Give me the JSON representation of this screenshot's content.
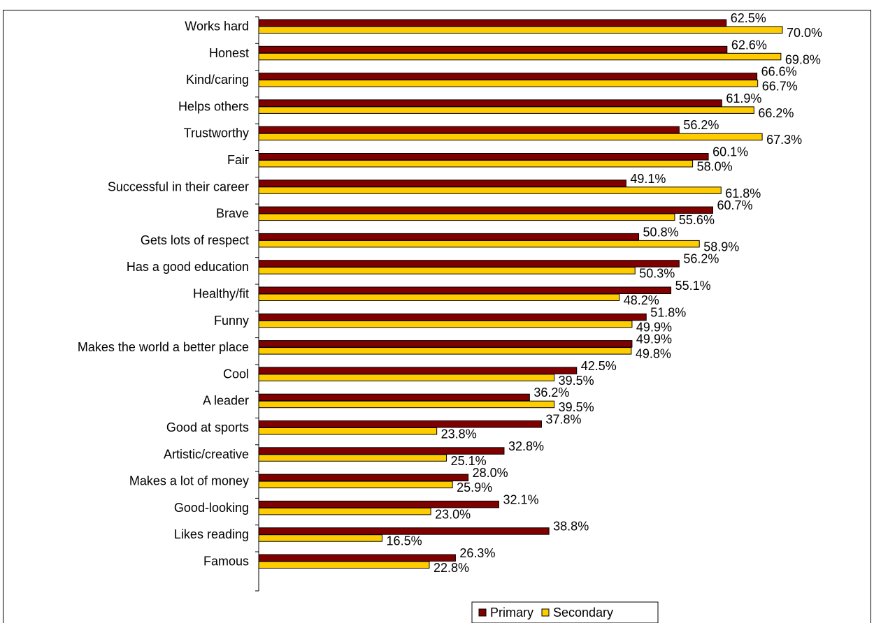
{
  "title": "",
  "chart_data": {
    "type": "bar",
    "orientation": "horizontal",
    "categories": [
      "Works hard",
      "Honest",
      "Kind/caring",
      "Helps others",
      "Trustworthy",
      "Fair",
      "Successful in their career",
      "Brave",
      "Gets lots of respect",
      "Has a good education",
      "Healthy/fit",
      "Funny",
      "Makes the world a better place",
      "Cool",
      "A leader",
      "Good at sports",
      "Artistic/creative",
      "Makes a lot of money",
      "Good-looking",
      "Likes reading",
      "Famous"
    ],
    "series": [
      {
        "name": "Primary",
        "color": "#800000",
        "values": [
          62.5,
          62.6,
          66.6,
          61.9,
          56.2,
          60.1,
          49.1,
          60.7,
          50.8,
          56.2,
          55.1,
          51.8,
          49.9,
          42.5,
          36.2,
          37.8,
          32.8,
          28.0,
          32.1,
          38.8,
          26.3
        ],
        "labels": [
          "62.5%",
          "62.6%",
          "66.6%",
          "61.9%",
          "56.2%",
          "60.1%",
          "49.1%",
          "60.7%",
          "50.8%",
          "56.2%",
          "55.1%",
          "51.8%",
          "49.9%",
          "42.5%",
          "36.2%",
          "37.8%",
          "32.8%",
          "28.0%",
          "32.1%",
          "38.8%",
          "26.3%"
        ]
      },
      {
        "name": "Secondary",
        "color": "#FFCC00",
        "values": [
          70.0,
          69.8,
          66.7,
          66.2,
          67.3,
          58.0,
          61.8,
          55.6,
          58.9,
          50.3,
          48.2,
          49.9,
          49.8,
          39.5,
          39.5,
          23.8,
          25.1,
          25.9,
          23.0,
          16.5,
          22.8
        ],
        "labels": [
          "70.0%",
          "69.8%",
          "66.7%",
          "66.2%",
          "67.3%",
          "58.0%",
          "61.8%",
          "55.6%",
          "58.9%",
          "50.3%",
          "48.2%",
          "49.9%",
          "49.8%",
          "39.5%",
          "39.5%",
          "23.8%",
          "25.1%",
          "25.9%",
          "23.0%",
          "16.5%",
          "22.8%"
        ]
      }
    ],
    "xlim": [
      0,
      70
    ],
    "legend": "bottom-right",
    "grid": false
  }
}
